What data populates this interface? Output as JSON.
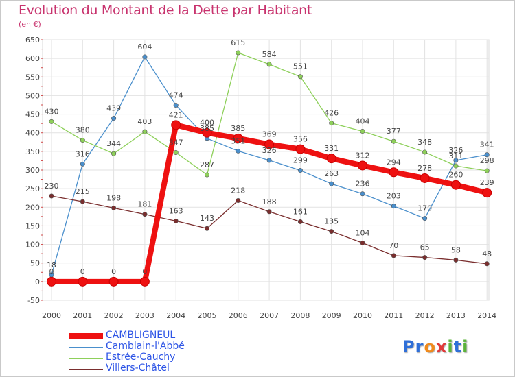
{
  "title": "Evolution du Montant de la Dette par Habitant",
  "subtitle": "(en €)",
  "logo": {
    "text": "Proxiti",
    "colors": [
      "#2f6fd8",
      "#2f6fd8",
      "#f08a1c",
      "#e03a3a",
      "#5bb33a",
      "#2f6fd8",
      "#5bb33a"
    ]
  },
  "chart_data": {
    "type": "line",
    "x": [
      "2000",
      "2001",
      "2002",
      "2003",
      "2004",
      "2005",
      "2006",
      "2007",
      "2008",
      "2009",
      "2010",
      "2011",
      "2012",
      "2013",
      "2014"
    ],
    "ylim": [
      -50,
      650
    ],
    "yticks": [
      -50,
      0,
      50,
      100,
      150,
      200,
      250,
      300,
      350,
      400,
      450,
      500,
      550,
      600,
      650
    ],
    "grid": true,
    "legend_position": "bottom-left",
    "series": [
      {
        "name": "CAMBLIGNEUL",
        "color": "#ee1111",
        "values": [
          0,
          0,
          0,
          0,
          421,
          400,
          385,
          369,
          356,
          331,
          312,
          294,
          278,
          260,
          239
        ]
      },
      {
        "name": "Camblain-l'Abbé",
        "color": "#4a8fcc",
        "values": [
          18,
          316,
          439,
          604,
          474,
          385,
          351,
          326,
          299,
          263,
          236,
          203,
          170,
          326,
          341
        ]
      },
      {
        "name": "Estrée-Cauchy",
        "color": "#8ed05a",
        "values": [
          430,
          380,
          344,
          403,
          347,
          287,
          615,
          584,
          551,
          426,
          404,
          377,
          348,
          311,
          298
        ]
      },
      {
        "name": "Villers-Châtel",
        "color": "#7a2e2e",
        "values": [
          230,
          215,
          198,
          181,
          163,
          143,
          218,
          188,
          161,
          135,
          104,
          70,
          65,
          58,
          48
        ]
      }
    ]
  }
}
